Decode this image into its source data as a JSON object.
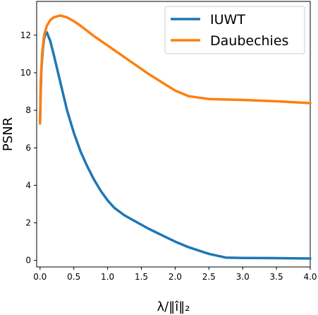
{
  "chart_data": {
    "type": "line",
    "xlabel": "λ/‖î‖₂",
    "ylabel": "PSNR",
    "xlim": [
      -0.05,
      4.0
    ],
    "ylim": [
      -0.35,
      13.8
    ],
    "x_ticks": [
      0.0,
      0.5,
      1.0,
      1.5,
      2.0,
      2.5,
      3.0,
      3.5,
      4.0
    ],
    "x_tick_labels": [
      "0.0",
      "0.5",
      "1.0",
      "1.5",
      "2.0",
      "2.5",
      "3.0",
      "3.5",
      "4.0"
    ],
    "y_ticks": [
      0,
      2,
      4,
      6,
      8,
      10,
      12
    ],
    "y_tick_labels": [
      "0",
      "2",
      "4",
      "6",
      "8",
      "10",
      "12"
    ],
    "grid": false,
    "legend_position": "top-right",
    "series": [
      {
        "name": "IUWT",
        "color": "#1f77b4",
        "points": [
          [
            0.0,
            7.3
          ],
          [
            0.01,
            9.0
          ],
          [
            0.02,
            10.2
          ],
          [
            0.04,
            11.2
          ],
          [
            0.06,
            11.8
          ],
          [
            0.08,
            12.1
          ],
          [
            0.1,
            12.15
          ],
          [
            0.15,
            11.7
          ],
          [
            0.2,
            11.0
          ],
          [
            0.3,
            9.5
          ],
          [
            0.4,
            8.0
          ],
          [
            0.5,
            6.8
          ],
          [
            0.6,
            5.8
          ],
          [
            0.7,
            5.0
          ],
          [
            0.8,
            4.3
          ],
          [
            0.9,
            3.7
          ],
          [
            1.0,
            3.2
          ],
          [
            1.1,
            2.8
          ],
          [
            1.25,
            2.4
          ],
          [
            1.4,
            2.1
          ],
          [
            1.6,
            1.7
          ],
          [
            1.8,
            1.35
          ],
          [
            2.0,
            1.0
          ],
          [
            2.2,
            0.7
          ],
          [
            2.5,
            0.35
          ],
          [
            2.75,
            0.15
          ],
          [
            3.0,
            0.13
          ],
          [
            3.5,
            0.12
          ],
          [
            4.0,
            0.1
          ]
        ]
      },
      {
        "name": "Daubechies",
        "color": "#ff7f0e",
        "points": [
          [
            0.0,
            7.3
          ],
          [
            0.01,
            9.5
          ],
          [
            0.03,
            11.0
          ],
          [
            0.06,
            12.0
          ],
          [
            0.1,
            12.5
          ],
          [
            0.15,
            12.8
          ],
          [
            0.2,
            12.95
          ],
          [
            0.3,
            13.05
          ],
          [
            0.4,
            12.95
          ],
          [
            0.5,
            12.75
          ],
          [
            0.6,
            12.5
          ],
          [
            0.8,
            11.95
          ],
          [
            1.0,
            11.45
          ],
          [
            1.2,
            10.95
          ],
          [
            1.4,
            10.45
          ],
          [
            1.6,
            9.95
          ],
          [
            1.8,
            9.5
          ],
          [
            2.0,
            9.05
          ],
          [
            2.2,
            8.75
          ],
          [
            2.5,
            8.6
          ],
          [
            3.0,
            8.55
          ],
          [
            3.5,
            8.48
          ],
          [
            4.0,
            8.38
          ]
        ]
      }
    ]
  }
}
